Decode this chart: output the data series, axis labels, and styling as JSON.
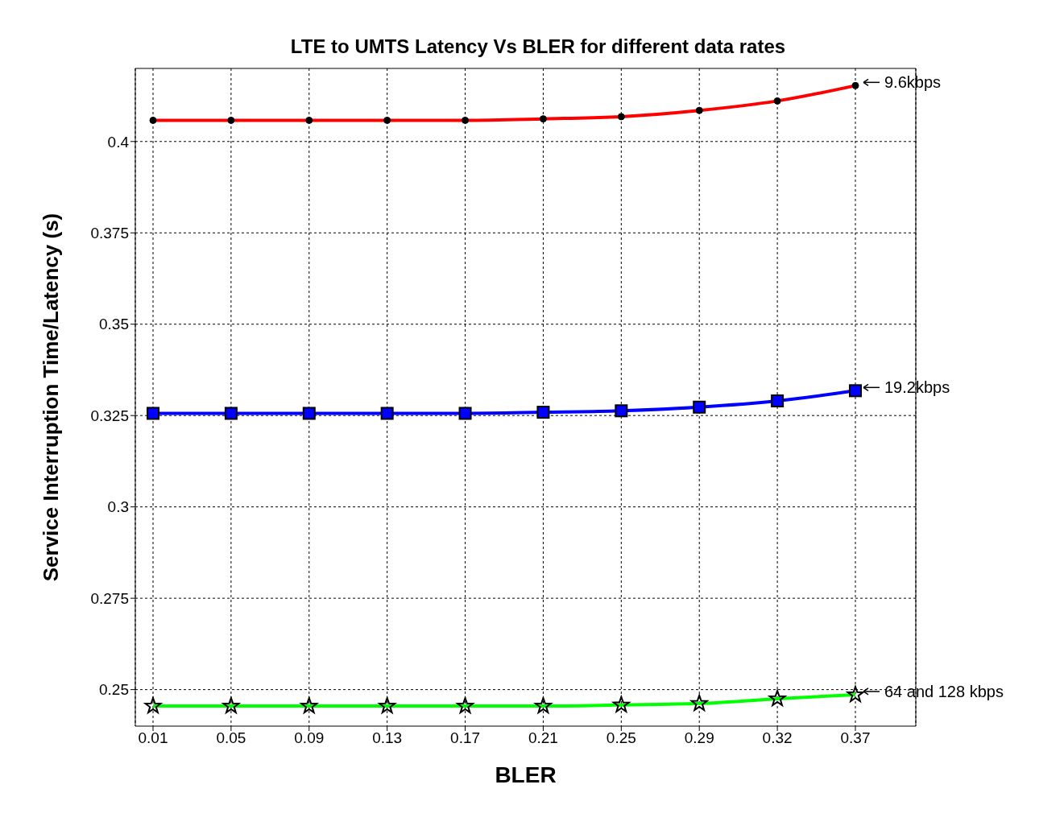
{
  "chart_data": {
    "type": "line",
    "title": "LTE to UMTS Latency Vs BLER for different data rates",
    "xlabel": "BLER",
    "ylabel": "Service Interruption Time/Latency (s)",
    "categories": [
      "0.01",
      "0.05",
      "0.09",
      "0.13",
      "0.17",
      "0.21",
      "0.25",
      "0.29",
      "0.32",
      "0.37"
    ],
    "series": [
      {
        "color": "#ff0000",
        "marker": "circle",
        "values": [
          0.4058,
          0.4058,
          0.4058,
          0.4058,
          0.4058,
          0.4062,
          0.4068,
          0.4085,
          0.4111,
          0.4153
        ]
      },
      {
        "color": "#0000ff",
        "marker": "square",
        "values": [
          0.3256,
          0.3256,
          0.3256,
          0.3256,
          0.3256,
          0.3259,
          0.3263,
          0.3273,
          0.329,
          0.3318
        ]
      },
      {
        "color": "#00ff00",
        "marker": "star",
        "values": [
          0.2455,
          0.2455,
          0.2455,
          0.2455,
          0.2455,
          0.2455,
          0.2458,
          0.2462,
          0.2475,
          0.2486
        ]
      }
    ],
    "annotations": [
      {
        "text": "9.6kbps",
        "x": "0.37",
        "y": 0.4153
      },
      {
        "text": "19.2kbps",
        "x": "0.37",
        "y": 0.3318
      },
      {
        "text": "64 and 128 kbps",
        "x": "0.37",
        "y": 0.2486
      }
    ],
    "ylim": [
      0.24,
      0.42
    ],
    "yticks": [
      0.25,
      0.275,
      0.3,
      0.325,
      0.35,
      0.375,
      0.4
    ],
    "grid": true,
    "line_style": "solid"
  }
}
